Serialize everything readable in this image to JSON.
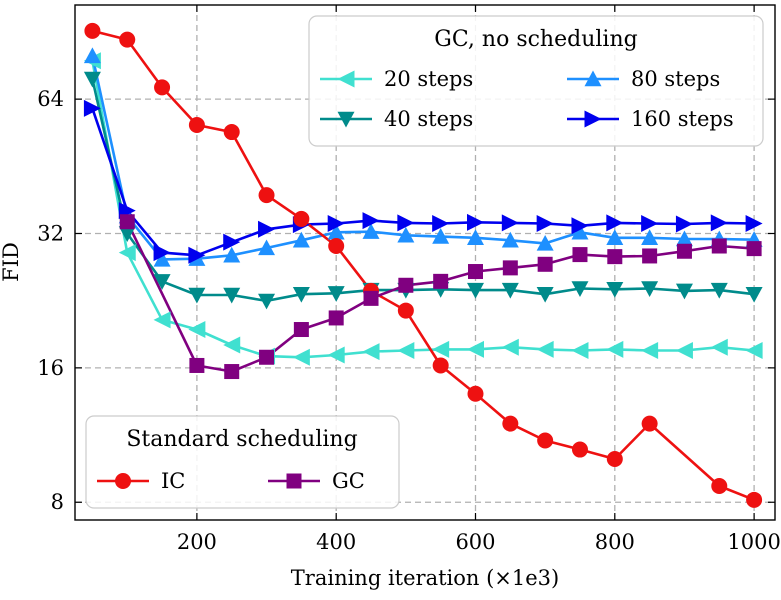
{
  "chart_data": {
    "type": "line",
    "xlabel": "Training iteration (×1e3)",
    "ylabel": "FID",
    "y_scale": "log2",
    "xlim": [
      25,
      1030
    ],
    "ylim": [
      7.3,
      104
    ],
    "x_ticks": [
      200,
      400,
      600,
      800,
      1000
    ],
    "x_tick_labels": [
      "200",
      "400",
      "600",
      "800",
      "1000"
    ],
    "y_ticks": [
      8,
      16,
      32,
      64
    ],
    "y_tick_labels": [
      "8",
      "16",
      "32",
      "64"
    ],
    "grid": true,
    "x": [
      50,
      100,
      150,
      200,
      250,
      300,
      350,
      400,
      450,
      500,
      550,
      600,
      650,
      700,
      750,
      800,
      850,
      900,
      950,
      1000
    ],
    "legend_upper": {
      "title": "GC, no scheduling",
      "position": "top-right",
      "entries": [
        "20 steps",
        "40 steps",
        "80 steps",
        "160 steps"
      ]
    },
    "legend_lower": {
      "title": "Standard scheduling",
      "position": "bottom-left",
      "entries": [
        "IC",
        "GC"
      ]
    },
    "series": [
      {
        "name": "20 steps",
        "group": "GC, no scheduling",
        "color": "#40E0D0",
        "marker": "triangle-left",
        "values": [
          78,
          29,
          20.5,
          19.5,
          18,
          17,
          16.9,
          17.1,
          17.4,
          17.5,
          17.6,
          17.6,
          17.8,
          17.6,
          17.5,
          17.6,
          17.5,
          17.5,
          17.8,
          17.5
        ]
      },
      {
        "name": "40 steps",
        "group": "GC, no scheduling",
        "color": "#008B8B",
        "marker": "triangle-down",
        "values": [
          71,
          32,
          25,
          23.3,
          23.3,
          22.6,
          23.4,
          23.5,
          23.9,
          23.9,
          24,
          23.9,
          23.9,
          23.4,
          24.1,
          24,
          24.1,
          23.8,
          23.9,
          23.4
        ]
      },
      {
        "name": "80 steps",
        "group": "GC, no scheduling",
        "color": "#1E90FF",
        "marker": "triangle-up",
        "values": [
          80,
          35,
          28,
          28.1,
          28.6,
          29.7,
          30.9,
          32.2,
          32.3,
          31.7,
          31.5,
          31.3,
          30.9,
          30.4,
          32.2,
          31.3,
          31.3,
          31.1,
          31.1,
          31
        ]
      },
      {
        "name": "160 steps",
        "group": "GC, no scheduling",
        "color": "#0000EE",
        "marker": "triangle-right",
        "values": [
          61,
          36,
          29,
          28.6,
          30.6,
          32.7,
          33.5,
          33.7,
          34.2,
          33.8,
          33.7,
          33.9,
          33.8,
          33.7,
          33.3,
          33.8,
          33.7,
          33.6,
          33.8,
          33.7
        ]
      },
      {
        "name": "IC",
        "group": "Standard scheduling",
        "color": "#EE1111",
        "marker": "circle",
        "values": [
          91,
          87,
          68,
          56,
          54,
          39,
          34.5,
          30,
          23.8,
          21.5,
          16.2,
          14,
          12,
          11,
          10.5,
          10,
          12,
          null,
          8.7,
          8.1
        ]
      },
      {
        "name": "GC",
        "group": "Standard scheduling",
        "color": "#800080",
        "marker": "square",
        "values": [
          null,
          34,
          null,
          16.2,
          15.7,
          16.9,
          19.5,
          20.7,
          22.9,
          24.5,
          25,
          26.3,
          26.8,
          27.3,
          28.7,
          28.4,
          28.5,
          29.2,
          30,
          29.6
        ]
      }
    ]
  }
}
